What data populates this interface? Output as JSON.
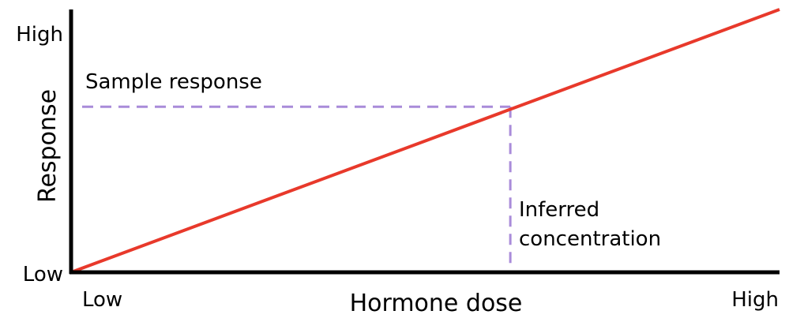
{
  "chart_data": {
    "type": "line",
    "title": "",
    "xlabel": "Hormone dose",
    "ylabel": "Response",
    "x_ticks": [
      "Low",
      "High"
    ],
    "y_ticks": [
      "Low",
      "High"
    ],
    "xlim": [
      0,
      1
    ],
    "ylim": [
      0,
      1
    ],
    "grid": false,
    "series": [
      {
        "name": "",
        "color": "#e8392b",
        "x": [
          0,
          1
        ],
        "y": [
          0,
          1
        ]
      }
    ],
    "reference": {
      "x": 0.62,
      "y": 0.63,
      "color": "#a98bd9"
    },
    "annotations": {
      "sample_response": "Sample response",
      "inferred_line1": "Inferred",
      "inferred_line2": "concentration"
    },
    "colors": {
      "axis": "#000000",
      "line": "#e8392b",
      "reference": "#a98bd9"
    }
  }
}
